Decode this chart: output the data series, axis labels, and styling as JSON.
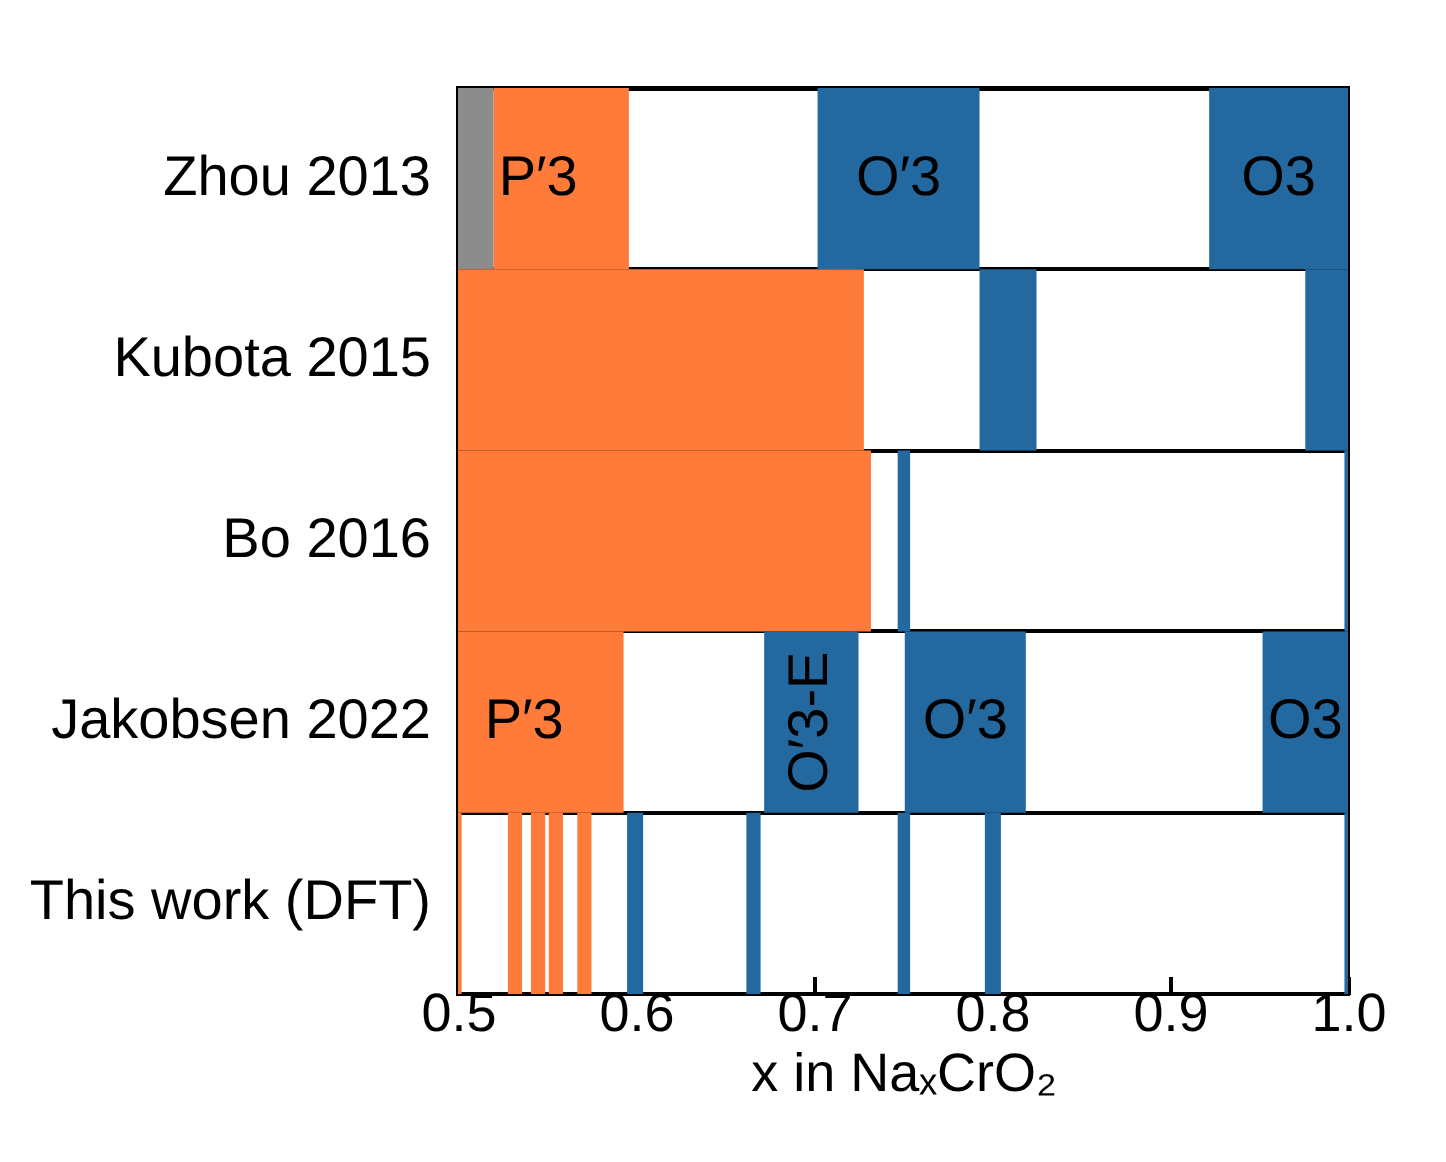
{
  "chart_data": {
    "type": "bar",
    "orientation": "horizontal",
    "categories": [
      "Zhou 2013",
      "Kubota 2015",
      "Bo 2016",
      "Jakobsen 2022",
      "This work (DFT)"
    ],
    "xlabel": "x in NaₓCrO₂",
    "xlim": [
      0.5,
      1.0
    ],
    "xticks": [
      0.5,
      0.6,
      0.7,
      0.8,
      0.9,
      {
        "value": 1,
        "label": "1.0"
      }
    ],
    "series": [
      {
        "colors": [
          "#8c8c8c",
          "#ff7b3a",
          "#ff7b3a",
          "#ff7b3a",
          "#ff7b3a"
        ],
        "base": [
          0.5,
          0.5,
          0.5,
          0.5,
          0.5
        ],
        "values": [
          0.02,
          0.228,
          0.232,
          0.093,
          0.002
        ]
      },
      {
        "colors": [
          "#ff7b3a",
          "#2369a0",
          "#2369a0",
          "#2369a0",
          "#ff7b3a"
        ],
        "base": [
          0.52,
          0.793,
          0.747,
          0.672,
          0.528
        ],
        "values": [
          0.076,
          0.032,
          0.007,
          0.053,
          0.008
        ]
      },
      {
        "colors": [
          "#2369a0",
          "#2369a0",
          "#2369a0",
          "#2369a0",
          "#ff7b3a"
        ],
        "base": [
          0.702,
          0.976,
          0.998,
          0.751,
          0.541
        ],
        "values": [
          0.091,
          0.024,
          0.002,
          0.068,
          0.008
        ]
      },
      {
        "colors": [
          "#2369a0",
          null,
          null,
          "#2369a0",
          "#ff7b3a"
        ],
        "base": [
          0.922,
          null,
          null,
          0.952,
          0.551
        ],
        "values": [
          0.078,
          null,
          null,
          0.048,
          0.008
        ]
      },
      {
        "colors": [
          null,
          null,
          null,
          null,
          "#ff7b3a"
        ],
        "base": [
          null,
          null,
          null,
          null,
          0.567
        ],
        "values": [
          null,
          null,
          null,
          null,
          0.008
        ]
      },
      {
        "colors": [
          null,
          null,
          null,
          null,
          "#2369a0"
        ],
        "base": [
          null,
          null,
          null,
          null,
          0.595
        ],
        "values": [
          null,
          null,
          null,
          null,
          0.009
        ]
      },
      {
        "colors": [
          null,
          null,
          null,
          null,
          "#2369a0"
        ],
        "base": [
          null,
          null,
          null,
          null,
          0.662
        ],
        "values": [
          null,
          null,
          null,
          null,
          0.008
        ]
      },
      {
        "colors": [
          null,
          null,
          null,
          null,
          "#2369a0"
        ],
        "base": [
          null,
          null,
          null,
          null,
          0.747
        ],
        "values": [
          null,
          null,
          null,
          null,
          0.007
        ]
      },
      {
        "colors": [
          null,
          null,
          null,
          null,
          "#2369a0"
        ],
        "base": [
          null,
          null,
          null,
          null,
          0.796
        ],
        "values": [
          null,
          null,
          null,
          null,
          0.009
        ]
      },
      {
        "colors": [
          null,
          null,
          null,
          null,
          "#2369a0"
        ],
        "base": [
          null,
          null,
          null,
          null,
          0.998
        ],
        "values": [
          null,
          null,
          null,
          null,
          0.002
        ]
      }
    ],
    "annotations": [
      "P′3",
      "O′3",
      "O3",
      "P′3",
      "O′3-E",
      "O′3",
      "O3"
    ]
  }
}
